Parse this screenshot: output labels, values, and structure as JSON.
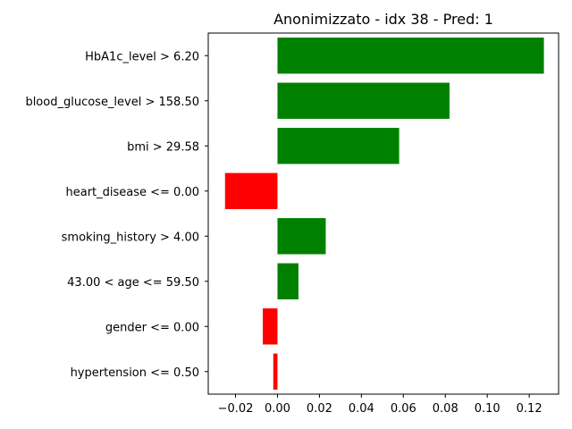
{
  "chart_data": {
    "type": "bar",
    "orientation": "horizontal",
    "title": "Anonimizzato - idx 38 - Pred: 1",
    "xlabel": "",
    "ylabel": "",
    "categories": [
      "HbA1c_level > 6.20",
      "blood_glucose_level > 158.50",
      "bmi > 29.58",
      "heart_disease <= 0.00",
      "smoking_history > 4.00",
      "43.00 < age <= 59.50",
      "gender <= 0.00",
      "hypertension <= 0.50"
    ],
    "values": [
      0.127,
      0.082,
      0.058,
      -0.025,
      0.023,
      0.01,
      -0.007,
      -0.002
    ],
    "xlim": [
      -0.033,
      0.134
    ],
    "xticks": [
      -0.02,
      0.0,
      0.02,
      0.04,
      0.06,
      0.08,
      0.1,
      0.12
    ],
    "xtick_labels": [
      "−0.02",
      "0.00",
      "0.02",
      "0.04",
      "0.06",
      "0.08",
      "0.10",
      "0.12"
    ],
    "colors": {
      "positive": "#008000",
      "negative": "#ff0000"
    },
    "grid": false,
    "legend": "none"
  }
}
